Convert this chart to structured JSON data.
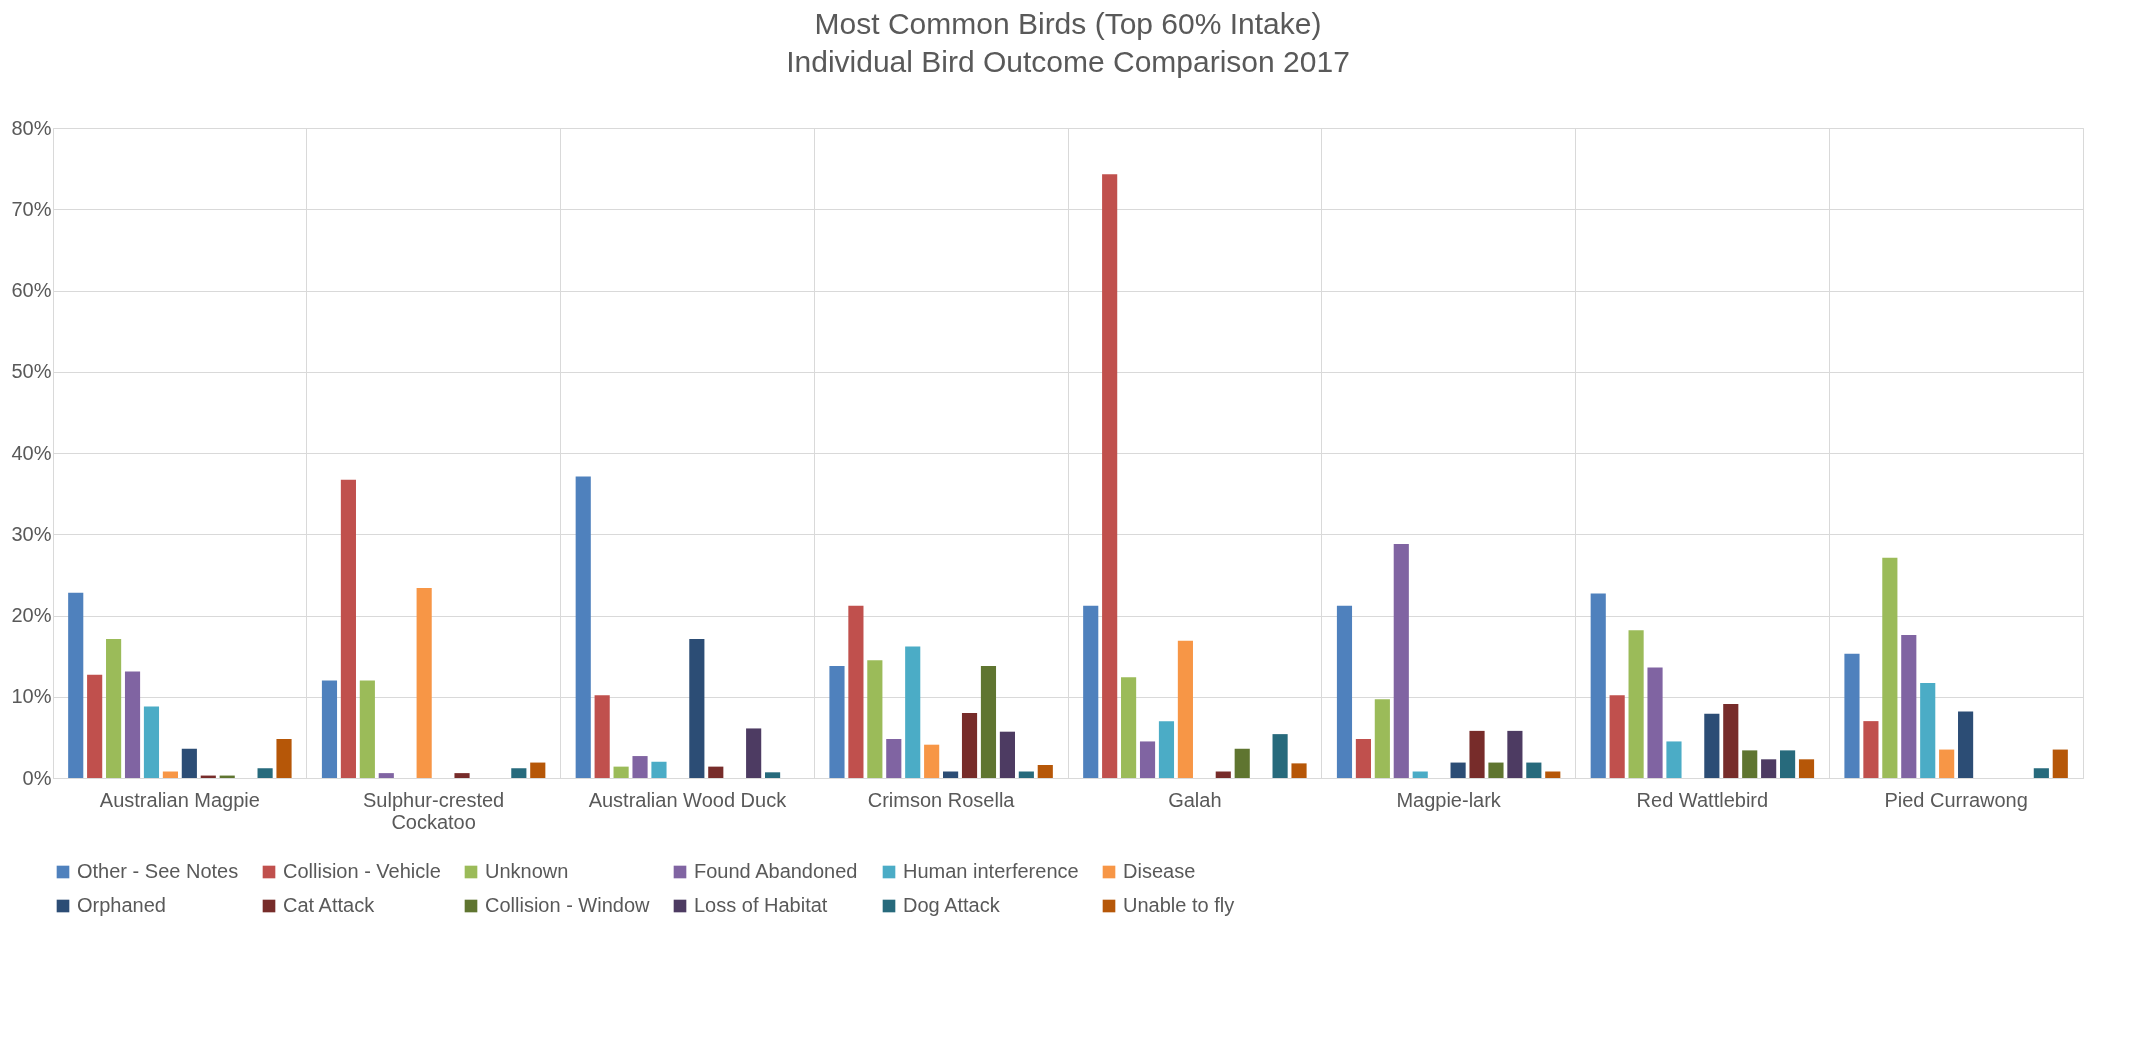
{
  "chart_data": {
    "type": "bar",
    "title": "Most Common Birds (Top 60% Intake)",
    "subtitle": "Individual Bird Outcome Comparison 2017",
    "categories": [
      "Australian Magpie",
      "Sulphur-crested Cockatoo",
      "Australian Wood Duck",
      "Crimson Rosella",
      "Galah",
      "Magpie-lark",
      "Red Wattlebird",
      "Pied Currawong"
    ],
    "series": [
      {
        "name": "Other - See Notes",
        "color": "#4f81bd",
        "values": [
          22.8,
          12,
          37.1,
          13.8,
          21.2,
          21.2,
          22.7,
          15.3
        ]
      },
      {
        "name": "Collision - Vehicle",
        "color": "#c0504d",
        "values": [
          12.7,
          36.7,
          10.2,
          21.2,
          74.3,
          4.8,
          10.2,
          7
        ]
      },
      {
        "name": "Unknown",
        "color": "#9bbb59",
        "values": [
          17.1,
          12,
          1.4,
          14.5,
          12.4,
          9.7,
          18.2,
          27.1
        ]
      },
      {
        "name": "Found Abandoned",
        "color": "#8064a2",
        "values": [
          13.1,
          0.6,
          2.7,
          4.8,
          4.5,
          28.8,
          13.6,
          17.6
        ]
      },
      {
        "name": "Human interference",
        "color": "#4bacc6",
        "values": [
          8.8,
          0,
          2,
          16.2,
          7,
          0.8,
          4.5,
          11.7
        ]
      },
      {
        "name": "Disease",
        "color": "#f79646",
        "values": [
          0.8,
          23.4,
          0,
          4.1,
          16.9,
          0,
          0,
          3.5
        ]
      },
      {
        "name": "Orphaned",
        "color": "#2c4d75",
        "values": [
          3.6,
          0,
          17.1,
          0.8,
          0,
          1.9,
          7.9,
          8.2
        ]
      },
      {
        "name": "Cat Attack",
        "color": "#772c2a",
        "values": [
          0.3,
          0.6,
          1.4,
          8,
          0.8,
          5.8,
          9.1,
          0
        ]
      },
      {
        "name": "Collision - Window",
        "color": "#5f7530",
        "values": [
          0.3,
          0,
          0,
          13.8,
          3.6,
          1.9,
          3.4,
          0
        ]
      },
      {
        "name": "Loss of Habitat",
        "color": "#4d3b62",
        "values": [
          0,
          0,
          6.1,
          5.7,
          0,
          5.8,
          2.3,
          0
        ]
      },
      {
        "name": "Dog Attack",
        "color": "#276a7c",
        "values": [
          1.2,
          1.2,
          0.7,
          0.8,
          5.4,
          1.9,
          3.4,
          1.2
        ]
      },
      {
        "name": "Unable to fly",
        "color": "#b65708",
        "values": [
          4.8,
          1.9,
          0,
          1.6,
          1.8,
          0.8,
          2.3,
          3.5
        ]
      }
    ],
    "ylim": [
      0,
      80
    ],
    "yticks": [
      {
        "value": 0,
        "label": "0%"
      },
      {
        "value": 10,
        "label": "10%"
      },
      {
        "value": 20,
        "label": "20%"
      },
      {
        "value": 30,
        "label": "30%"
      },
      {
        "value": 40,
        "label": "40%"
      },
      {
        "value": 50,
        "label": "50%"
      },
      {
        "value": 60,
        "label": "60%"
      },
      {
        "value": 70,
        "label": "70%"
      },
      {
        "value": 80,
        "label": "80%"
      }
    ],
    "grid": true,
    "legend": "bottom"
  }
}
